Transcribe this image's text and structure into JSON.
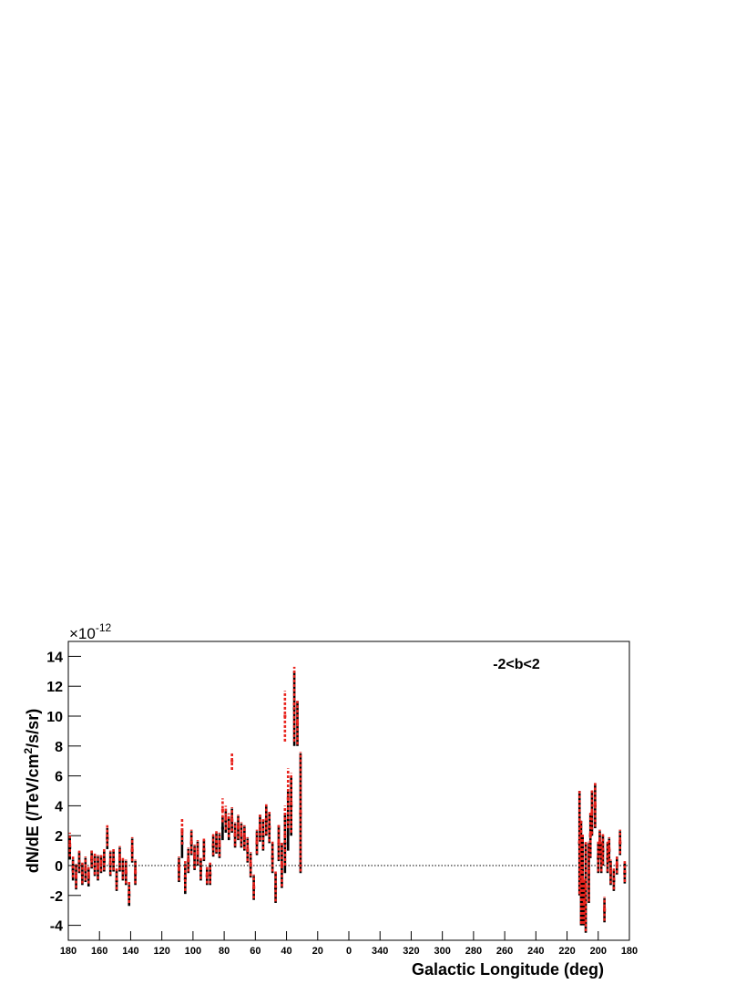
{
  "chart_data": {
    "type": "errorbar",
    "annotation": "-2<b<2",
    "x_label": "Galactic Longitude (deg)",
    "y_label_parts": [
      "dN/dE (/TeV/cm",
      "2",
      "/s/sr)"
    ],
    "y_multiplier": {
      "base": "×10",
      "exponent": "-12"
    },
    "xlim": [
      180,
      -180
    ],
    "ylim": [
      -5,
      15
    ],
    "xticks": [
      180,
      160,
      140,
      120,
      100,
      80,
      60,
      40,
      20,
      0,
      {
        "value": -20,
        "label": "340"
      },
      {
        "value": -40,
        "label": "320"
      },
      {
        "value": -60,
        "label": "300"
      },
      {
        "value": -80,
        "label": "280"
      },
      {
        "value": -100,
        "label": "260"
      },
      {
        "value": -120,
        "label": "240"
      },
      {
        "value": -140,
        "label": "220"
      },
      {
        "value": -160,
        "label": "200"
      },
      {
        "value": -180,
        "label": "180"
      }
    ],
    "yticks": [
      -4,
      -2,
      0,
      2,
      4,
      6,
      8,
      10,
      12,
      14
    ],
    "hline": 0,
    "series": [
      {
        "color": "#000000",
        "x": [
          179,
          177,
          175,
          173,
          171,
          169,
          167,
          165,
          163,
          161,
          159,
          157,
          155,
          153,
          151,
          149,
          147,
          145,
          143,
          141,
          139,
          137,
          109,
          107,
          105,
          103,
          101,
          99,
          97,
          95,
          93,
          91,
          89,
          87,
          85,
          83,
          81,
          79,
          77,
          75,
          73,
          71,
          69,
          67,
          65,
          63,
          61,
          59,
          57,
          55,
          53,
          51,
          49,
          47,
          45,
          43,
          41,
          39,
          37,
          35,
          33,
          31,
          -148,
          -149,
          -150,
          -151,
          -152,
          -154,
          -155,
          -156,
          -158,
          -160,
          -161,
          -162,
          -163,
          -164,
          -166,
          -167,
          -168,
          -170,
          -172,
          -174,
          -177
        ],
        "values": [
          1.2,
          -0.3,
          -0.8,
          0.2,
          -0.6,
          -0.3,
          -0.8,
          0.4,
          0.0,
          -0.2,
          0.1,
          0.3,
          1.8,
          0.1,
          0.3,
          -1.0,
          0.4,
          -0.3,
          -0.5,
          -2.0,
          1.0,
          -0.5,
          -0.3,
          1.5,
          -0.9,
          0.3,
          1.5,
          0.5,
          0.8,
          -0.3,
          1.0,
          -0.7,
          -0.6,
          1.3,
          1.5,
          1.3,
          2.5,
          3.0,
          2.5,
          3.0,
          2.0,
          2.5,
          2.0,
          1.8,
          1.0,
          0.0,
          -1.5,
          1.5,
          2.5,
          2.0,
          3.0,
          2.5,
          0.5,
          -1.5,
          1.5,
          0.0,
          1.5,
          3.0,
          4.0,
          10.5,
          9.5,
          3.5,
          1.5,
          -0.5,
          -1.0,
          -2.5,
          -1.5,
          -0.5,
          2.0,
          3.5,
          4.0,
          0.5,
          1.5,
          0.5,
          1.0,
          -3.0,
          0.5,
          1.0,
          -0.5,
          -1.0,
          0.0,
          1.5,
          -0.5
        ],
        "errors": [
          0.8,
          0.7,
          0.8,
          0.7,
          0.7,
          0.8,
          0.6,
          0.6,
          0.7,
          0.8,
          0.6,
          0.7,
          0.7,
          0.8,
          0.7,
          0.7,
          0.8,
          0.7,
          0.8,
          0.7,
          0.8,
          0.8,
          0.8,
          1.0,
          1.0,
          0.8,
          0.8,
          0.8,
          0.8,
          0.7,
          0.7,
          0.6,
          0.7,
          0.7,
          0.7,
          0.8,
          0.8,
          0.8,
          0.8,
          0.8,
          0.8,
          0.8,
          0.8,
          0.8,
          0.8,
          0.8,
          0.8,
          0.8,
          0.9,
          1.0,
          1.0,
          1.0,
          1.0,
          1.0,
          1.2,
          1.5,
          2.0,
          2.0,
          2.0,
          2.5,
          1.5,
          4.0,
          3.5,
          3.5,
          3.0,
          1.5,
          3.0,
          2.0,
          1.5,
          1.5,
          1.5,
          1.0,
          0.8,
          1.0,
          1.0,
          0.8,
          1.0,
          0.8,
          0.8,
          0.7,
          0.6,
          0.8,
          0.7
        ]
      },
      {
        "color": "#e8221c",
        "x": [
          179,
          177,
          175,
          173,
          171,
          169,
          167,
          165,
          163,
          161,
          159,
          157,
          155,
          153,
          151,
          149,
          147,
          145,
          143,
          141,
          139,
          137,
          109,
          107,
          105,
          103,
          101,
          99,
          97,
          95,
          93,
          91,
          89,
          87,
          85,
          83,
          81,
          79,
          77,
          75,
          75,
          73,
          71,
          69,
          67,
          65,
          63,
          61,
          59,
          57,
          55,
          53,
          51,
          49,
          47,
          45,
          43,
          41,
          41,
          39,
          37,
          35,
          33,
          31,
          -148,
          -149,
          -150,
          -151,
          -152,
          -154,
          -155,
          -156,
          -158,
          -160,
          -161,
          -162,
          -163,
          -164,
          -166,
          -167,
          -168,
          -170,
          -172,
          -174,
          -177
        ],
        "values": [
          1.4,
          -0.1,
          -0.7,
          0.3,
          -0.5,
          -0.2,
          -0.6,
          0.5,
          0.1,
          -0.1,
          0.2,
          0.4,
          2.0,
          0.2,
          0.4,
          -0.9,
          0.5,
          -0.2,
          -0.4,
          -1.8,
          1.1,
          -0.4,
          -0.2,
          2.3,
          -0.7,
          0.4,
          1.6,
          0.6,
          0.9,
          -0.2,
          1.1,
          -0.6,
          -0.5,
          1.4,
          1.6,
          1.4,
          3.7,
          3.2,
          2.7,
          7.0,
          3.1,
          2.1,
          2.6,
          2.1,
          1.9,
          1.1,
          0.1,
          -1.4,
          1.6,
          2.6,
          2.1,
          3.1,
          2.6,
          0.6,
          -1.4,
          1.6,
          0.1,
          10.0,
          2.0,
          4.5,
          4.2,
          10.8,
          9.6,
          3.6,
          1.6,
          -0.4,
          -0.9,
          -2.4,
          -1.4,
          -0.4,
          2.1,
          3.6,
          4.1,
          0.6,
          1.6,
          0.6,
          1.1,
          -2.9,
          0.6,
          1.1,
          -0.4,
          -0.9,
          0.1,
          1.6,
          -0.4
        ],
        "errors": [
          0.8,
          0.7,
          0.8,
          0.7,
          0.7,
          0.8,
          0.6,
          0.6,
          0.7,
          0.8,
          0.6,
          0.7,
          0.7,
          0.8,
          0.7,
          0.7,
          0.8,
          0.7,
          0.8,
          0.7,
          0.8,
          0.8,
          0.8,
          0.9,
          1.0,
          0.8,
          0.8,
          0.8,
          0.8,
          0.7,
          0.7,
          0.6,
          0.7,
          0.7,
          0.7,
          0.8,
          0.8,
          0.8,
          0.8,
          0.6,
          0.8,
          0.8,
          0.8,
          0.8,
          0.8,
          0.8,
          0.8,
          0.8,
          0.8,
          0.9,
          1.0,
          1.0,
          1.0,
          1.0,
          1.0,
          1.2,
          1.5,
          1.7,
          2.0,
          2.0,
          2.0,
          2.5,
          1.5,
          4.0,
          3.5,
          3.5,
          3.0,
          1.5,
          3.0,
          2.0,
          1.5,
          1.5,
          1.5,
          1.0,
          0.8,
          1.0,
          1.0,
          0.8,
          1.0,
          0.8,
          0.8,
          0.7,
          0.6,
          0.8,
          0.7
        ]
      }
    ]
  }
}
